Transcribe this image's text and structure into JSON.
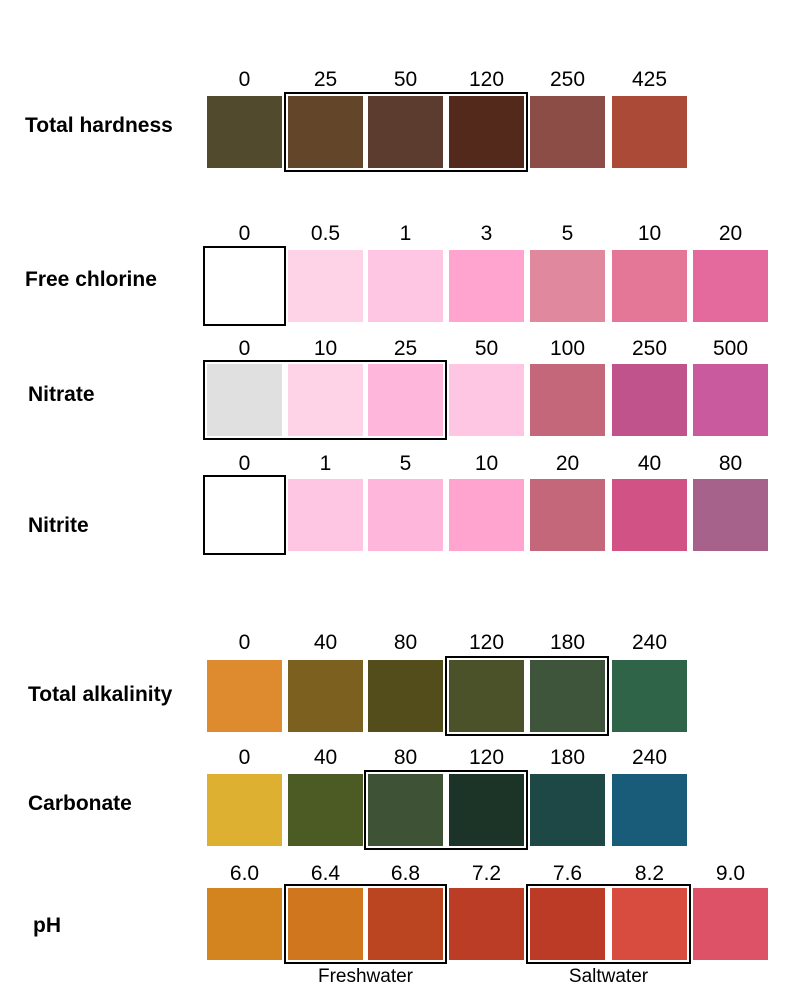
{
  "rows": [
    {
      "label": "Total hardness",
      "values": [
        "0",
        "25",
        "50",
        "120",
        "250",
        "425"
      ],
      "colors": [
        "#524a2c",
        "#634629",
        "#5c3c2e",
        "#53291c",
        "#8b4d45",
        "#ab4a36"
      ],
      "highlight": [
        [
          1,
          3
        ]
      ]
    },
    {
      "label": "Free chlorine",
      "values": [
        "0",
        "0.5",
        "1",
        "3",
        "5",
        "10",
        "20"
      ],
      "colors": [
        "#ffffff",
        "#ffd3e7",
        "#ffc6e3",
        "#ffa3cf",
        "#e0889d",
        "#e47698",
        "#e46a9e"
      ],
      "highlight": [
        [
          0,
          0
        ]
      ]
    },
    {
      "label": "Nitrate",
      "values": [
        "0",
        "10",
        "25",
        "50",
        "100",
        "250",
        "500"
      ],
      "colors": [
        "#e0e0e0",
        "#ffd3e7",
        "#ffb6db",
        "#ffc6e3",
        "#c5677b",
        "#c0538b",
        "#c85a9d"
      ],
      "highlight": [
        [
          0,
          2
        ]
      ]
    },
    {
      "label": "Nitrite",
      "values": [
        "0",
        "1",
        "5",
        "10",
        "20",
        "40",
        "80"
      ],
      "colors": [
        "#ffffff",
        "#ffc6e3",
        "#ffb6db",
        "#ffa3cf",
        "#c5677b",
        "#d15285",
        "#a6628a"
      ],
      "highlight": [
        [
          0,
          0
        ]
      ]
    },
    {
      "label": "Total alkalinity",
      "values": [
        "0",
        "40",
        "80",
        "120",
        "180",
        "240"
      ],
      "colors": [
        "#dd8b2e",
        "#7b6020",
        "#524d1a",
        "#4b522a",
        "#3e543b",
        "#2f6448"
      ],
      "highlight": [
        [
          3,
          4
        ]
      ]
    },
    {
      "label": "Carbonate",
      "values": [
        "0",
        "40",
        "80",
        "120",
        "180",
        "240"
      ],
      "colors": [
        "#ddb032",
        "#4c5a24",
        "#3e5335",
        "#1c3428",
        "#1e4845",
        "#195c7a"
      ],
      "highlight": [
        [
          2,
          3
        ]
      ]
    },
    {
      "label": "pH",
      "values": [
        "6.0",
        "6.4",
        "6.8",
        "7.2",
        "7.6",
        "8.2",
        "9.0"
      ],
      "colors": [
        "#d4841f",
        "#cf761f",
        "#bb4520",
        "#bb3d25",
        "#bb3b27",
        "#d74c3e",
        "#dd5266"
      ],
      "highlight": [
        [
          1,
          2
        ],
        [
          4,
          5
        ]
      ]
    }
  ],
  "captions": [
    "Freshwater",
    "Saltwater"
  ]
}
